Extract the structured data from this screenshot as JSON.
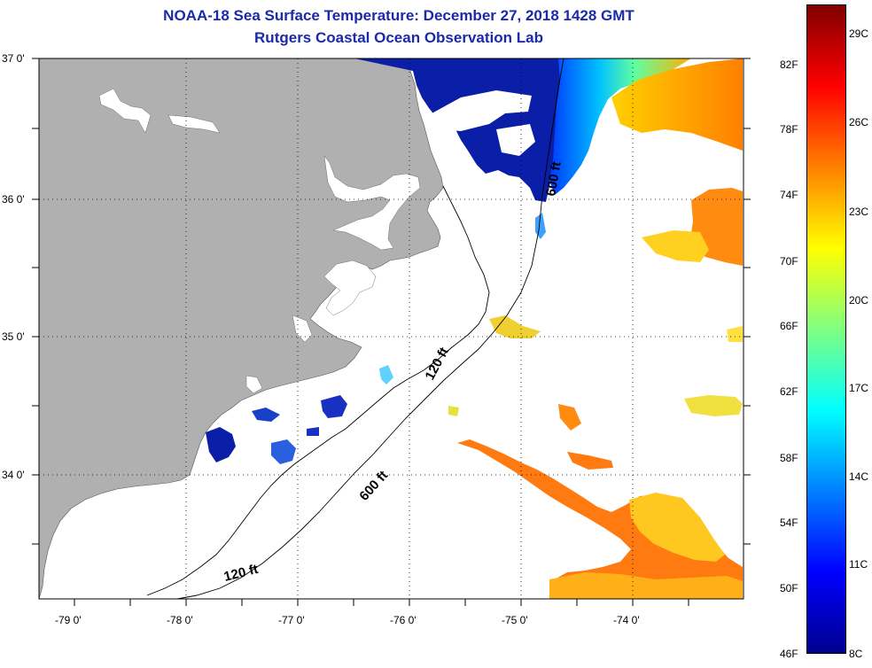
{
  "title": {
    "line1": "NOAA-18 Sea Surface Temperature:  December 27, 2018 1428 GMT",
    "line2": "Rutgers Coastal Ocean Observation Lab"
  },
  "lat_labels": [
    "37 0'",
    "36 0'",
    "35 0'",
    "34 0'"
  ],
  "lon_labels": [
    "-79 0'",
    "-78 0'",
    "-77 0'",
    "-76 0'",
    "-75 0'",
    "-74 0'"
  ],
  "contour_labels": {
    "c600_north": "600 ft",
    "c120_mid": "120 ft",
    "c600_mid": "600 ft",
    "c120_south": "120 ft"
  },
  "colorbar": {
    "fahrenheit": [
      "82F",
      "78F",
      "74F",
      "70F",
      "66F",
      "62F",
      "58F",
      "54F",
      "50F",
      "46F"
    ],
    "celsius": [
      "29C",
      "26C",
      "23C",
      "20C",
      "17C",
      "14C",
      "11C",
      "8C"
    ],
    "gradient": [
      "#00008f",
      "#0000ff",
      "#0080ff",
      "#00ffff",
      "#80ff80",
      "#ffff00",
      "#ff8000",
      "#ff0000",
      "#800000"
    ]
  },
  "colors": {
    "land": "#b0b0b0",
    "cold_water": "#0a1ea8",
    "title": "#1a2aa8"
  }
}
